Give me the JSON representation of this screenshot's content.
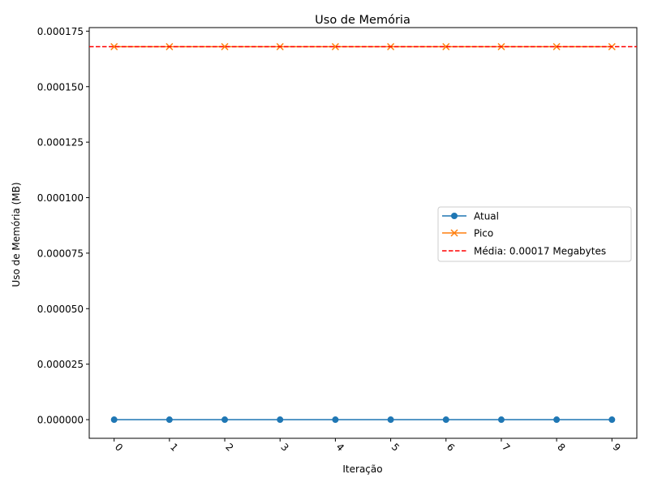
{
  "chart_data": {
    "type": "line",
    "title": "Uso de Memória",
    "xlabel": "Iteração",
    "ylabel": "Uso de Memória (MB)",
    "x": [
      0,
      1,
      2,
      3,
      4,
      5,
      6,
      7,
      8,
      9
    ],
    "x_tick_labels": [
      "0",
      "1",
      "2",
      "3",
      "4",
      "5",
      "6",
      "7",
      "8",
      "9"
    ],
    "y_ticks": [
      0.0,
      2.5e-05,
      5e-05,
      7.5e-05,
      0.0001,
      0.000125,
      0.00015,
      0.000175
    ],
    "y_tick_labels": [
      "0.000000",
      "0.000025",
      "0.000050",
      "0.000075",
      "0.000100",
      "0.000125",
      "0.000150",
      "0.000175"
    ],
    "xlim": [
      -0.45,
      9.45
    ],
    "ylim": [
      -8.4e-06,
      0.0001766
    ],
    "series": [
      {
        "name": "Atual",
        "values": [
          0,
          0,
          0,
          0,
          0,
          0,
          0,
          0,
          0,
          0
        ],
        "color": "#1f77b4",
        "marker": "circle"
      },
      {
        "name": "Pico",
        "values": [
          0.000168,
          0.000168,
          0.000168,
          0.000168,
          0.000168,
          0.000168,
          0.000168,
          0.000168,
          0.000168,
          0.000168
        ],
        "color": "#ff7f0e",
        "marker": "x"
      }
    ],
    "reference_line": {
      "name": "Média: 0.00017 Megabytes",
      "value": 0.000168,
      "color": "#ff0000",
      "style": "dashed"
    },
    "legend_position": "center-right",
    "grid": false
  }
}
